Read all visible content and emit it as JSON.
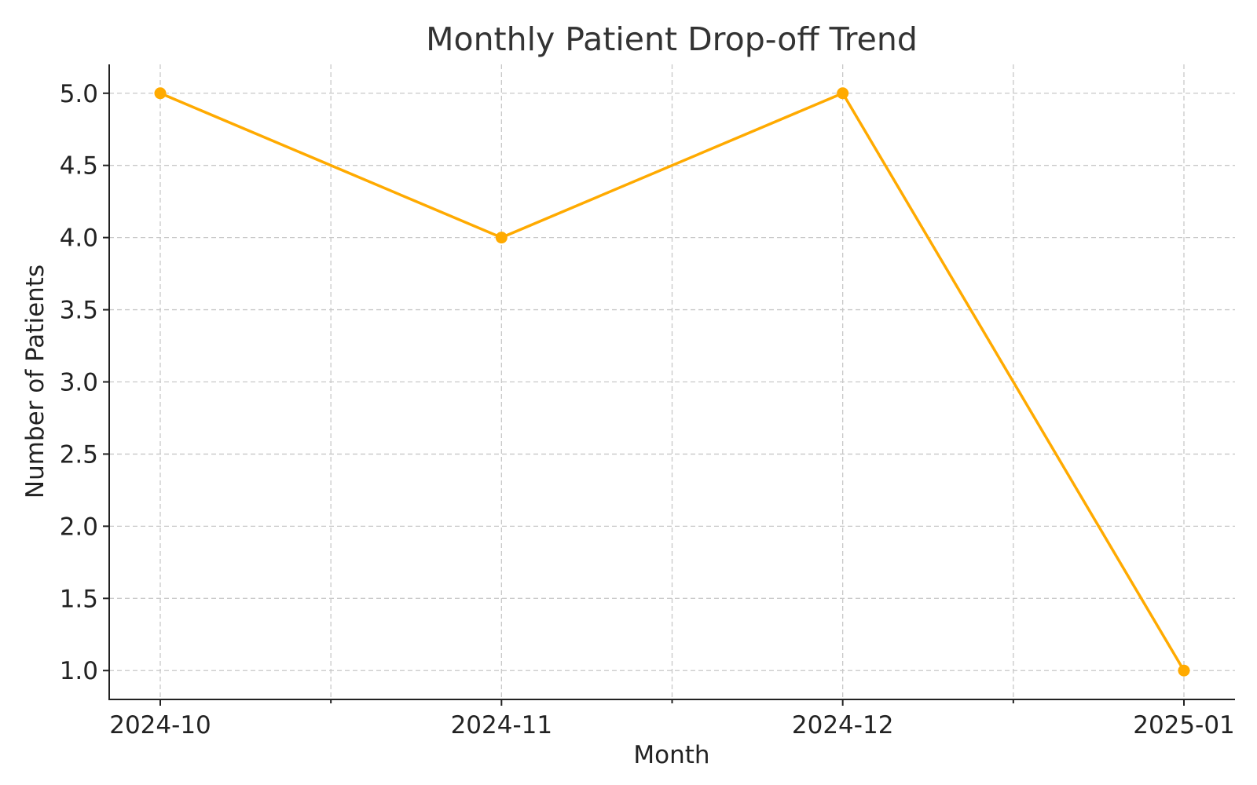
{
  "chart_data": {
    "type": "line",
    "title": "Monthly Patient Drop-off Trend",
    "xlabel": "Month",
    "ylabel": "Number of Patients",
    "x": [
      "2024-10",
      "2024-11",
      "2024-12",
      "2025-01"
    ],
    "series": [
      {
        "values": [
          5,
          4,
          5,
          1
        ]
      }
    ],
    "ylim": [
      0.8,
      5.2
    ],
    "yticks": [
      "1.0",
      "1.5",
      "2.0",
      "2.5",
      "3.0",
      "3.5",
      "4.0",
      "4.5",
      "5.0"
    ],
    "xticks": [
      "2024-10",
      "2024-11",
      "2024-12",
      "2025-01"
    ],
    "grid": true,
    "line_color": "#FFAA00",
    "legend": "none"
  }
}
